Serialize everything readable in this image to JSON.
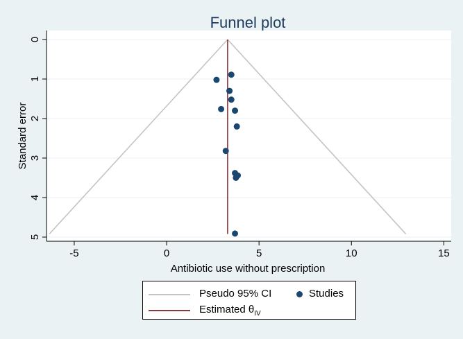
{
  "chart_data": {
    "type": "scatter",
    "title": "Funnel plot",
    "xlabel": "Antibiotic use without prescription",
    "ylabel": "Standard error",
    "xlim": [
      -6.5,
      15.4
    ],
    "ylim": [
      0,
      5.05
    ],
    "y_inverted": true,
    "x_ticks": [
      -5,
      0,
      5,
      10,
      15
    ],
    "y_ticks": [
      0,
      1,
      2,
      3,
      4,
      5
    ],
    "grid": true,
    "legend_position": "bottom",
    "pooled_estimate": 3.3,
    "ci_y_max": 4.92,
    "studies": [
      {
        "x": 3.5,
        "y": 0.89
      },
      {
        "x": 2.7,
        "y": 1.02
      },
      {
        "x": 3.4,
        "y": 1.3
      },
      {
        "x": 3.5,
        "y": 1.52
      },
      {
        "x": 3.7,
        "y": 1.8
      },
      {
        "x": 2.95,
        "y": 1.76
      },
      {
        "x": 3.8,
        "y": 2.2
      },
      {
        "x": 3.2,
        "y": 2.82
      },
      {
        "x": 3.7,
        "y": 3.38
      },
      {
        "x": 3.85,
        "y": 3.44
      },
      {
        "x": 3.75,
        "y": 3.5
      },
      {
        "x": 3.7,
        "y": 4.91
      }
    ],
    "legend": [
      {
        "label": "Pseudo 95% CI",
        "kind": "line",
        "color": "#c4c4c4"
      },
      {
        "label": "Studies",
        "kind": "marker",
        "color": "#1a476f"
      },
      {
        "label": "Estimated θ",
        "subscript": "IV",
        "kind": "line",
        "color": "#90353b"
      }
    ],
    "colors": {
      "background": "#eaf2f3",
      "plot_background": "#ffffff",
      "grid": "#eaf2f3",
      "title": "#1e3a5f",
      "ci": "#c4c4c4",
      "estimate": "#90353b",
      "marker": "#1a476f"
    }
  }
}
